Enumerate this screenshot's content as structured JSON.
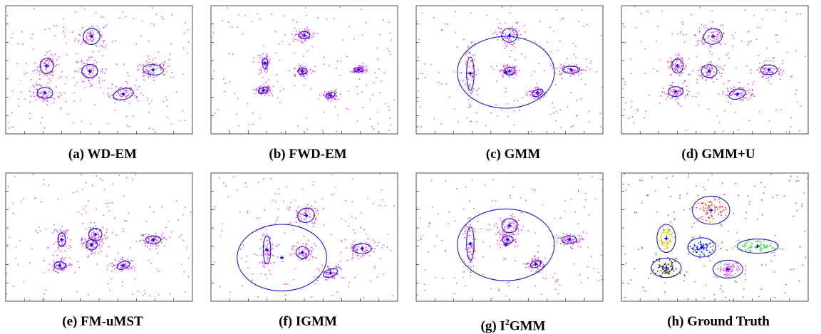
{
  "figure": {
    "panels": [
      {
        "id": "a",
        "label": "(a) WD-EM"
      },
      {
        "id": "b",
        "label": "(b) FWD-EM"
      },
      {
        "id": "c",
        "label": "(c) GMM"
      },
      {
        "id": "d",
        "label": "(d) GMM+U"
      },
      {
        "id": "e",
        "label": "(e) FM-uMST"
      },
      {
        "id": "f",
        "label": "(f) IGMM"
      },
      {
        "id": "g",
        "label_prefix": "(g) I",
        "label_sup": "2",
        "label_suffix": "GMM"
      },
      {
        "id": "h",
        "label": "(h) Ground Truth"
      }
    ]
  },
  "colors": {
    "points": "#e040e0",
    "ellipse": "#1a1acc",
    "center": "#0000ff",
    "axis": "#222222",
    "gt_clusters": [
      "#ff2020",
      "#e0c000",
      "#1020ff",
      "#20e020",
      "#111111",
      "#e040e0"
    ],
    "gt_noise": "#2f8f2f"
  },
  "chart_data": [
    {
      "id": "a",
      "type": "scatter",
      "xlim": [
        0,
        10
      ],
      "ylim": [
        0,
        10
      ],
      "ellipses": [
        {
          "cx": 4.6,
          "cy": 7.6,
          "rx": 0.45,
          "ry": 0.62,
          "angle": 20
        },
        {
          "cx": 2.2,
          "cy": 5.3,
          "rx": 0.35,
          "ry": 0.6,
          "angle": 0
        },
        {
          "cx": 4.5,
          "cy": 4.9,
          "rx": 0.42,
          "ry": 0.52,
          "angle": 0
        },
        {
          "cx": 7.9,
          "cy": 5.0,
          "rx": 0.55,
          "ry": 0.4,
          "angle": -5
        },
        {
          "cx": 2.1,
          "cy": 3.2,
          "rx": 0.42,
          "ry": 0.42,
          "angle": 0
        },
        {
          "cx": 6.3,
          "cy": 3.1,
          "rx": 0.55,
          "ry": 0.42,
          "angle": 15
        }
      ]
    },
    {
      "id": "b",
      "type": "scatter",
      "xlim": [
        0,
        10
      ],
      "ylim": [
        0,
        10
      ],
      "ellipses": [
        {
          "cx": 5.0,
          "cy": 7.7,
          "rx": 0.3,
          "ry": 0.28,
          "angle": 0
        },
        {
          "cx": 2.9,
          "cy": 5.5,
          "rx": 0.15,
          "ry": 0.4,
          "angle": 0
        },
        {
          "cx": 4.9,
          "cy": 4.9,
          "rx": 0.25,
          "ry": 0.25,
          "angle": 0
        },
        {
          "cx": 7.9,
          "cy": 5.0,
          "rx": 0.25,
          "ry": 0.18,
          "angle": 0
        },
        {
          "cx": 2.8,
          "cy": 3.4,
          "rx": 0.28,
          "ry": 0.22,
          "angle": 25
        },
        {
          "cx": 6.4,
          "cy": 3.0,
          "rx": 0.25,
          "ry": 0.2,
          "angle": 20
        }
      ]
    },
    {
      "id": "c",
      "type": "scatter",
      "xlim": [
        0,
        10
      ],
      "ylim": [
        0,
        10
      ],
      "ellipses": [
        {
          "cx": 4.8,
          "cy": 4.8,
          "rx": 2.6,
          "ry": 2.8,
          "angle": 0
        },
        {
          "cx": 5.0,
          "cy": 7.7,
          "rx": 0.42,
          "ry": 0.55,
          "angle": 0
        },
        {
          "cx": 2.9,
          "cy": 4.7,
          "rx": 0.2,
          "ry": 1.3,
          "angle": 0
        },
        {
          "cx": 5.0,
          "cy": 4.9,
          "rx": 0.3,
          "ry": 0.3,
          "angle": 0
        },
        {
          "cx": 8.3,
          "cy": 5.0,
          "rx": 0.45,
          "ry": 0.28,
          "angle": 0
        },
        {
          "cx": 6.5,
          "cy": 3.2,
          "rx": 0.3,
          "ry": 0.25,
          "angle": 25
        }
      ]
    },
    {
      "id": "d",
      "type": "scatter",
      "xlim": [
        0,
        10
      ],
      "ylim": [
        0,
        10
      ],
      "ellipses": [
        {
          "cx": 4.9,
          "cy": 7.6,
          "rx": 0.5,
          "ry": 0.6,
          "angle": 15
        },
        {
          "cx": 3.0,
          "cy": 5.3,
          "rx": 0.3,
          "ry": 0.55,
          "angle": 0
        },
        {
          "cx": 4.7,
          "cy": 4.9,
          "rx": 0.42,
          "ry": 0.5,
          "angle": 0
        },
        {
          "cx": 7.9,
          "cy": 5.0,
          "rx": 0.45,
          "ry": 0.38,
          "angle": 0
        },
        {
          "cx": 2.9,
          "cy": 3.3,
          "rx": 0.4,
          "ry": 0.38,
          "angle": 0
        },
        {
          "cx": 6.2,
          "cy": 3.1,
          "rx": 0.45,
          "ry": 0.38,
          "angle": 15
        }
      ]
    },
    {
      "id": "e",
      "type": "scatter",
      "xlim": [
        0,
        10
      ],
      "ylim": [
        0,
        10
      ],
      "ellipses": [
        {
          "cx": 4.8,
          "cy": 5.2,
          "rx": 0.35,
          "ry": 0.5,
          "angle": 0
        },
        {
          "cx": 3.0,
          "cy": 4.8,
          "rx": 0.2,
          "ry": 0.55,
          "angle": 0
        },
        {
          "cx": 4.6,
          "cy": 4.4,
          "rx": 0.3,
          "ry": 0.4,
          "angle": 0
        },
        {
          "cx": 7.9,
          "cy": 4.8,
          "rx": 0.4,
          "ry": 0.3,
          "angle": 0
        },
        {
          "cx": 2.9,
          "cy": 2.8,
          "rx": 0.3,
          "ry": 0.28,
          "angle": 0
        },
        {
          "cx": 6.3,
          "cy": 2.8,
          "rx": 0.35,
          "ry": 0.28,
          "angle": 20
        }
      ]
    },
    {
      "id": "f",
      "type": "scatter",
      "xlim": [
        0,
        10
      ],
      "ylim": [
        0,
        10
      ],
      "ellipses": [
        {
          "cx": 3.8,
          "cy": 3.4,
          "rx": 2.4,
          "ry": 2.6,
          "angle": 0
        },
        {
          "cx": 5.1,
          "cy": 6.7,
          "rx": 0.45,
          "ry": 0.55,
          "angle": 15
        },
        {
          "cx": 3.0,
          "cy": 4.0,
          "rx": 0.2,
          "ry": 1.1,
          "angle": 0
        },
        {
          "cx": 4.9,
          "cy": 3.8,
          "rx": 0.35,
          "ry": 0.45,
          "angle": 0
        },
        {
          "cx": 8.1,
          "cy": 4.1,
          "rx": 0.5,
          "ry": 0.38,
          "angle": 0
        },
        {
          "cx": 6.4,
          "cy": 2.2,
          "rx": 0.4,
          "ry": 0.3,
          "angle": 20
        }
      ]
    },
    {
      "id": "g",
      "type": "scatter",
      "xlim": [
        0,
        10
      ],
      "ylim": [
        0,
        10
      ],
      "ellipses": [
        {
          "cx": 4.8,
          "cy": 4.4,
          "rx": 2.6,
          "ry": 2.8,
          "angle": 0
        },
        {
          "cx": 5.0,
          "cy": 5.9,
          "rx": 0.42,
          "ry": 0.55,
          "angle": 0
        },
        {
          "cx": 2.9,
          "cy": 4.5,
          "rx": 0.2,
          "ry": 1.3,
          "angle": 0
        },
        {
          "cx": 4.9,
          "cy": 4.8,
          "rx": 0.3,
          "ry": 0.3,
          "angle": 0
        },
        {
          "cx": 8.2,
          "cy": 4.8,
          "rx": 0.4,
          "ry": 0.3,
          "angle": 0
        },
        {
          "cx": 6.4,
          "cy": 2.9,
          "rx": 0.3,
          "ry": 0.25,
          "angle": 25
        }
      ]
    },
    {
      "id": "h",
      "type": "scatter",
      "xlim": [
        0,
        10
      ],
      "ylim": [
        0,
        10
      ],
      "ellipses": [
        {
          "cx": 4.8,
          "cy": 7.1,
          "rx": 1.0,
          "ry": 1.1,
          "angle": 0
        },
        {
          "cx": 2.4,
          "cy": 4.9,
          "rx": 0.5,
          "ry": 1.1,
          "angle": 0
        },
        {
          "cx": 4.3,
          "cy": 4.2,
          "rx": 0.75,
          "ry": 0.75,
          "angle": 0
        },
        {
          "cx": 7.3,
          "cy": 4.3,
          "rx": 1.1,
          "ry": 0.55,
          "angle": 0
        },
        {
          "cx": 2.4,
          "cy": 2.6,
          "rx": 0.8,
          "ry": 0.75,
          "angle": 0
        },
        {
          "cx": 5.7,
          "cy": 2.5,
          "rx": 0.8,
          "ry": 0.7,
          "angle": 0
        }
      ]
    }
  ]
}
